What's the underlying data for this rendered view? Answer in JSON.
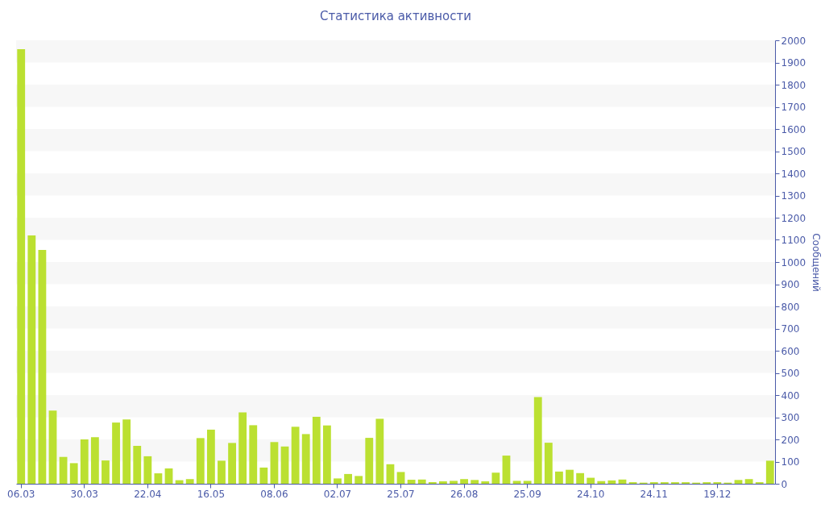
{
  "chart_data": {
    "type": "bar",
    "title": "Статистика активности",
    "ylabel": "Сообщений",
    "categories": [
      "06.03",
      null,
      null,
      null,
      null,
      null,
      "30.03",
      null,
      null,
      null,
      null,
      null,
      "22.04",
      null,
      null,
      null,
      null,
      null,
      "16.05",
      null,
      null,
      null,
      null,
      null,
      "08.06",
      null,
      null,
      null,
      null,
      null,
      "02.07",
      null,
      null,
      null,
      null,
      null,
      "25.07",
      null,
      null,
      null,
      null,
      null,
      "26.08",
      null,
      null,
      null,
      null,
      null,
      "25.09",
      null,
      null,
      null,
      null,
      null,
      "24.10",
      null,
      null,
      null,
      null,
      null,
      "24.11",
      null,
      null,
      null,
      null,
      null,
      "19.12",
      null,
      null,
      null,
      null,
      null
    ],
    "values": [
      1960,
      1120,
      1055,
      330,
      121,
      93,
      200,
      210,
      105,
      276,
      290,
      171,
      124,
      47,
      69,
      16,
      21,
      206,
      244,
      104,
      184,
      322,
      264,
      73,
      188,
      168,
      257,
      224,
      302,
      263,
      24,
      44,
      35,
      207,
      293,
      88,
      53,
      18,
      19,
      7,
      11,
      13,
      21,
      17,
      11,
      50,
      127,
      13,
      13,
      391,
      185,
      55,
      63,
      48,
      27,
      12,
      15,
      19,
      7,
      5,
      7,
      7,
      7,
      7,
      5,
      7,
      7,
      5,
      17,
      21,
      7,
      104
    ],
    "color": "#bbe031",
    "ylim": [
      0,
      2000
    ],
    "yticks": [
      0,
      100,
      200,
      300,
      400,
      500,
      600,
      700,
      800,
      900,
      1000,
      1100,
      1200,
      1300,
      1400,
      1500,
      1600,
      1700,
      1800,
      1900,
      2000
    ],
    "bands": [
      {
        "axis": "y",
        "from": 100,
        "to": 200,
        "color": "#f7f7f7"
      },
      {
        "axis": "y",
        "from": 300,
        "to": 400,
        "color": "#f7f7f7"
      },
      {
        "axis": "y",
        "from": 500,
        "to": 600,
        "color": "#f7f7f7"
      },
      {
        "axis": "y",
        "from": 700,
        "to": 800,
        "color": "#f7f7f7"
      },
      {
        "axis": "y",
        "from": 900,
        "to": 1000,
        "color": "#f7f7f7"
      },
      {
        "axis": "y",
        "from": 1100,
        "to": 1200,
        "color": "#f7f7f7"
      },
      {
        "axis": "y",
        "from": 1300,
        "to": 1400,
        "color": "#f7f7f7"
      },
      {
        "axis": "y",
        "from": 1500,
        "to": 1600,
        "color": "#f7f7f7"
      },
      {
        "axis": "y",
        "from": 1700,
        "to": 1800,
        "color": "#f7f7f7"
      },
      {
        "axis": "y",
        "from": 1900,
        "to": 2000,
        "color": "#f7f7f7"
      }
    ]
  }
}
